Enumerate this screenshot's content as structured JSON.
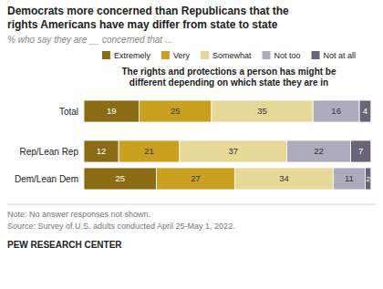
{
  "chart_data": {
    "type": "bar",
    "orientation": "horizontal",
    "stacked": true,
    "title": "Democrats more concerned than Republicans that the\nrights Americans have may differ from state to state",
    "subtitle": "% who say they are __ concerned that ...",
    "annotations": [
      "The rights and protections a person has might be\ndifferent depending on which state they are in",
      "Note: No answer responses not shown.",
      "Source: Survey of U.S. adults conducted April 25-May 1, 2022.",
      "PEW RESEARCH CENTER"
    ],
    "categories": [
      "Total",
      "Rep/Lean Rep",
      "Dem/Lean Dem"
    ],
    "series": [
      {
        "name": "Extremely",
        "color": "#8B6B14",
        "values": [
          19,
          12,
          25
        ]
      },
      {
        "name": "Very",
        "color": "#C9A020",
        "values": [
          25,
          21,
          27
        ]
      },
      {
        "name": "Somewhat",
        "color": "#E8D898",
        "values": [
          35,
          37,
          34
        ]
      },
      {
        "name": "Not too",
        "color": "#AEACBC",
        "values": [
          16,
          22,
          11
        ]
      },
      {
        "name": "Not at all",
        "color": "#6B6478",
        "values": [
          4,
          7,
          2
        ]
      }
    ],
    "xlim": [
      0,
      100
    ],
    "data_labels": true,
    "legend": "top",
    "grid": false,
    "tick_labels": false
  }
}
